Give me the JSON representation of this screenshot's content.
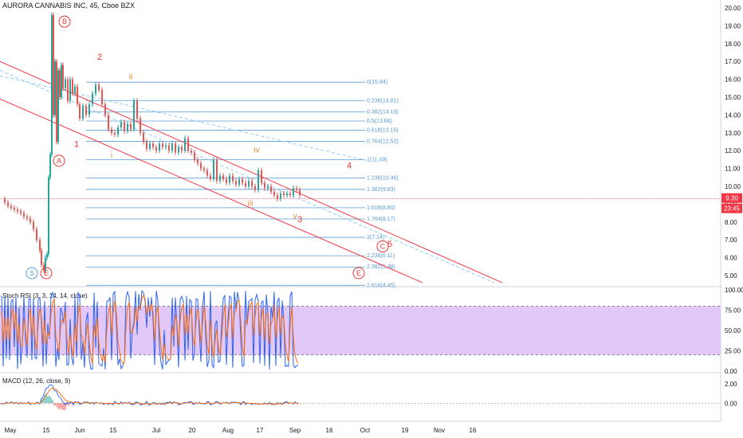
{
  "chart_data": {
    "type": "line",
    "title": "AURORA CANNABIS INC, 45, Cboe BZX",
    "main_axis": {
      "ticks": [
        "20.00",
        "19.00",
        "18.00",
        "17.00",
        "16.00",
        "15.00",
        "14.00",
        "13.00",
        "12.00",
        "11.00",
        "10.00",
        "9.00",
        "8.00",
        "7.00",
        "6.00",
        "5.00"
      ],
      "ylim": [
        4.5,
        20.2
      ]
    },
    "last_price": {
      "value": "9.30",
      "countdown": "23:45",
      "y_value": 9.3
    },
    "x_ticks": [
      "May",
      "15",
      "Jun",
      "15",
      "Jul",
      "20",
      "Aug",
      "17",
      "Sep",
      "16",
      "Oct",
      "19",
      "Nov",
      "16"
    ],
    "fib_levels": [
      {
        "label": "0(15.84)",
        "value": 15.84
      },
      {
        "label": "0.236(14.81)",
        "value": 14.81
      },
      {
        "label": "0.382(14.18)",
        "value": 14.18
      },
      {
        "label": "0.5(13.66)",
        "value": 13.66
      },
      {
        "label": "0.618(13.15)",
        "value": 13.15
      },
      {
        "label": "0.764(12.52)",
        "value": 12.52
      },
      {
        "label": "1(11.49)",
        "value": 11.49
      },
      {
        "label": "1.236(10.46)",
        "value": 10.46
      },
      {
        "label": "1.382(9.83)",
        "value": 9.83
      },
      {
        "label": "1.618(8.80)",
        "value": 8.8
      },
      {
        "label": "1.764(8.17)",
        "value": 8.17
      },
      {
        "label": "2(7.14)",
        "value": 7.14
      },
      {
        "label": "2.236(6.11)",
        "value": 6.11
      },
      {
        "label": "2.382(5.48)",
        "value": 5.48
      },
      {
        "label": "2.618(4.45)",
        "value": 4.45
      }
    ],
    "wave_labels": [
      "1",
      "2",
      "3",
      "4",
      "5",
      "i",
      "ii",
      "iii",
      "iv",
      "v",
      "A",
      "B",
      "C",
      "E",
      "S"
    ],
    "price_series": [
      {
        "t": 0,
        "v": 9.3
      },
      {
        "t": 4,
        "v": 9.1
      },
      {
        "t": 8,
        "v": 8.9
      },
      {
        "t": 12,
        "v": 8.8
      },
      {
        "t": 16,
        "v": 8.7
      },
      {
        "t": 20,
        "v": 8.6
      },
      {
        "t": 24,
        "v": 8.5
      },
      {
        "t": 28,
        "v": 8.3
      },
      {
        "t": 32,
        "v": 8.2
      },
      {
        "t": 36,
        "v": 8.0
      },
      {
        "t": 40,
        "v": 7.6
      },
      {
        "t": 44,
        "v": 7.0
      },
      {
        "t": 48,
        "v": 6.4
      },
      {
        "t": 50,
        "v": 5.6
      },
      {
        "t": 53,
        "v": 5.3
      },
      {
        "t": 55,
        "v": 6.0
      },
      {
        "t": 57,
        "v": 6.2
      },
      {
        "t": 59,
        "v": 10.5
      },
      {
        "t": 61,
        "v": 11.8
      },
      {
        "t": 63,
        "v": 19.6
      },
      {
        "t": 65,
        "v": 14.0
      },
      {
        "t": 67,
        "v": 17.0
      },
      {
        "t": 69,
        "v": 12.5
      },
      {
        "t": 71,
        "v": 16.5
      },
      {
        "t": 73,
        "v": 15.0
      },
      {
        "t": 75,
        "v": 16.8
      },
      {
        "t": 77,
        "v": 15.5
      },
      {
        "t": 80,
        "v": 16.0
      },
      {
        "t": 83,
        "v": 14.8
      },
      {
        "t": 86,
        "v": 16.0
      },
      {
        "t": 89,
        "v": 15.2
      },
      {
        "t": 92,
        "v": 15.6
      },
      {
        "t": 95,
        "v": 14.6
      },
      {
        "t": 98,
        "v": 13.8
      },
      {
        "t": 102,
        "v": 14.5
      },
      {
        "t": 106,
        "v": 14.0
      },
      {
        "t": 110,
        "v": 14.6
      },
      {
        "t": 114,
        "v": 15.2
      },
      {
        "t": 118,
        "v": 15.7
      },
      {
        "t": 122,
        "v": 15.4
      },
      {
        "t": 126,
        "v": 14.6
      },
      {
        "t": 130,
        "v": 14.0
      },
      {
        "t": 134,
        "v": 13.2
      },
      {
        "t": 138,
        "v": 13.0
      },
      {
        "t": 142,
        "v": 12.9
      },
      {
        "t": 146,
        "v": 13.3
      },
      {
        "t": 150,
        "v": 13.6
      },
      {
        "t": 154,
        "v": 13.1
      },
      {
        "t": 158,
        "v": 13.5
      },
      {
        "t": 162,
        "v": 13.2
      },
      {
        "t": 166,
        "v": 14.8
      },
      {
        "t": 170,
        "v": 13.8
      },
      {
        "t": 174,
        "v": 13.0
      },
      {
        "t": 178,
        "v": 12.5
      },
      {
        "t": 182,
        "v": 12.1
      },
      {
        "t": 186,
        "v": 12.4
      },
      {
        "t": 190,
        "v": 12.2
      },
      {
        "t": 194,
        "v": 12.0
      },
      {
        "t": 198,
        "v": 12.4
      },
      {
        "t": 202,
        "v": 12.2
      },
      {
        "t": 206,
        "v": 12.3
      },
      {
        "t": 210,
        "v": 12.0
      },
      {
        "t": 214,
        "v": 12.4
      },
      {
        "t": 218,
        "v": 11.9
      },
      {
        "t": 222,
        "v": 12.2
      },
      {
        "t": 226,
        "v": 12.0
      },
      {
        "t": 230,
        "v": 12.7
      },
      {
        "t": 234,
        "v": 12.0
      },
      {
        "t": 238,
        "v": 11.9
      },
      {
        "t": 242,
        "v": 11.5
      },
      {
        "t": 246,
        "v": 11.3
      },
      {
        "t": 250,
        "v": 11.0
      },
      {
        "t": 254,
        "v": 10.9
      },
      {
        "t": 258,
        "v": 10.6
      },
      {
        "t": 262,
        "v": 10.4
      },
      {
        "t": 266,
        "v": 11.5
      },
      {
        "t": 270,
        "v": 10.3
      },
      {
        "t": 274,
        "v": 10.6
      },
      {
        "t": 278,
        "v": 10.4
      },
      {
        "t": 282,
        "v": 10.2
      },
      {
        "t": 286,
        "v": 10.6
      },
      {
        "t": 290,
        "v": 10.3
      },
      {
        "t": 294,
        "v": 10.1
      },
      {
        "t": 298,
        "v": 10.4
      },
      {
        "t": 302,
        "v": 10.2
      },
      {
        "t": 306,
        "v": 10.0
      },
      {
        "t": 310,
        "v": 10.3
      },
      {
        "t": 314,
        "v": 10.0
      },
      {
        "t": 318,
        "v": 9.8
      },
      {
        "t": 322,
        "v": 10.9
      },
      {
        "t": 326,
        "v": 10.2
      },
      {
        "t": 330,
        "v": 9.9
      },
      {
        "t": 334,
        "v": 10.0
      },
      {
        "t": 338,
        "v": 9.7
      },
      {
        "t": 342,
        "v": 9.5
      },
      {
        "t": 346,
        "v": 9.3
      },
      {
        "t": 350,
        "v": 9.6
      },
      {
        "t": 354,
        "v": 9.5
      },
      {
        "t": 358,
        "v": 9.6
      },
      {
        "t": 362,
        "v": 9.5
      },
      {
        "t": 366,
        "v": 9.9
      },
      {
        "t": 370,
        "v": 9.8
      },
      {
        "t": 374,
        "v": 9.5
      }
    ],
    "stoch_rsi": {
      "label": "Stoch RSI (3, 3, 14, 14, close)",
      "ticks": [
        "100.00",
        "75.00",
        "50.00",
        "25.00",
        "0.00"
      ],
      "ylim": [
        -2,
        102
      ],
      "bands": [
        80,
        20
      ]
    },
    "macd": {
      "label": "MACD (12, 26, close, 9)",
      "ticks": [
        "2.00",
        "0.00"
      ],
      "ylim": [
        -1.8,
        3.0
      ]
    },
    "colors": {
      "candle_up": "#26a69a",
      "candle_down": "#ef5350",
      "channel": "#f23645",
      "fib": "#5b9bd5",
      "dashed_trend": "#90caf9",
      "stoch_band": "#e1c8f8",
      "stoch_k": "#2962ff",
      "stoch_d": "#ff6d00",
      "wave_red": "#e53935",
      "wave_orange": "#e08a2b",
      "price_tag": "#f23645"
    }
  }
}
